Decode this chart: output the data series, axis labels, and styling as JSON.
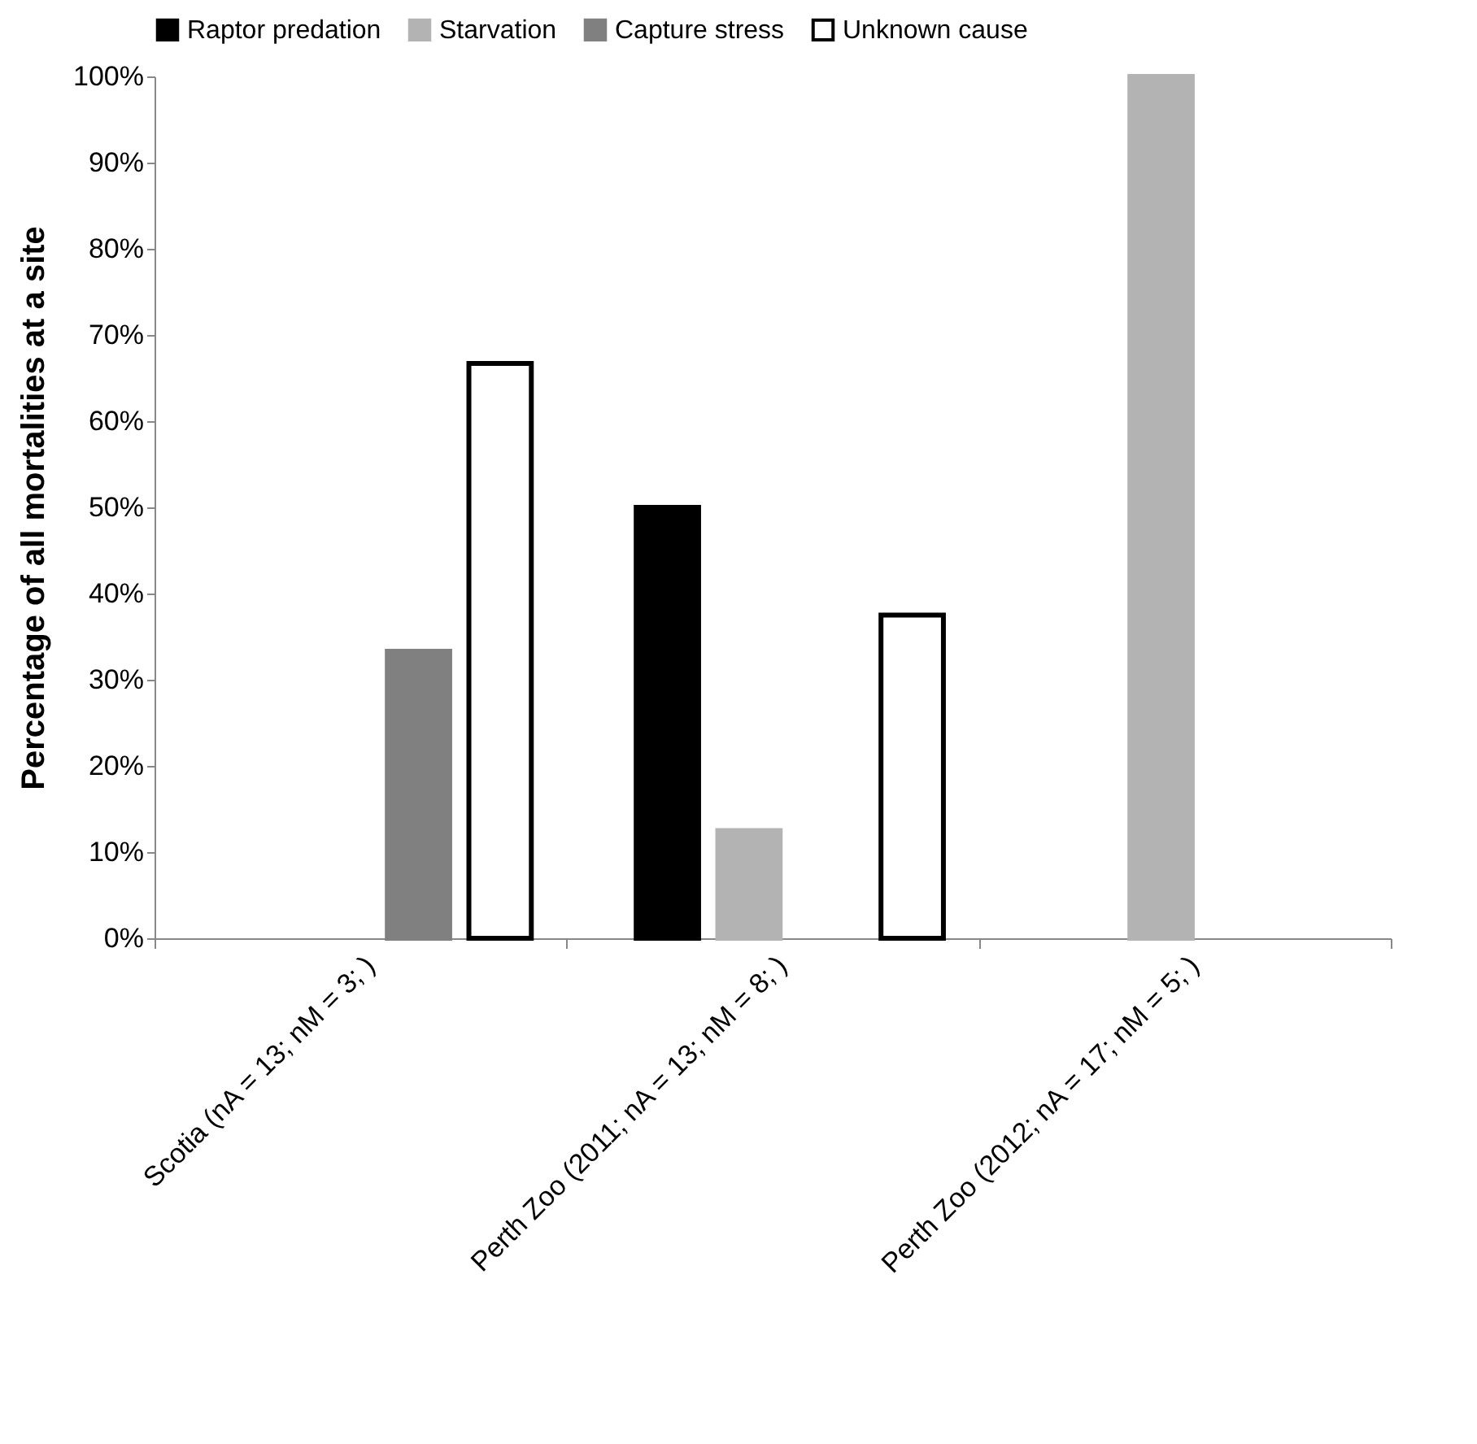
{
  "chart_data": {
    "type": "bar",
    "ylabel": "Percentage of all mortalities at a site",
    "categories": [
      "Scotia (nA = 13; nM = 3; )",
      "Perth Zoo (2011; nA = 13; nM = 8; )",
      "Perth Zoo (2012; nA = 17; nM = 5; )"
    ],
    "series": [
      {
        "name": "Raptor predation",
        "color": "#000000",
        "values": [
          null,
          50,
          null
        ]
      },
      {
        "name": "Starvation",
        "color": "#b3b3b3",
        "values": [
          null,
          12.5,
          100
        ]
      },
      {
        "name": "Capture stress",
        "color": "#808080",
        "values": [
          33.3,
          null,
          null
        ]
      },
      {
        "name": "Unknown cause",
        "color": "#ffffff",
        "values": [
          66.7,
          37.5,
          null
        ]
      }
    ],
    "ylim": [
      0,
      100
    ],
    "yticks": [
      {
        "value": 0,
        "label": "0%"
      },
      {
        "value": 10,
        "label": "10%"
      },
      {
        "value": 20,
        "label": "20%"
      },
      {
        "value": 30,
        "label": "30%"
      },
      {
        "value": 40,
        "label": "40%"
      },
      {
        "value": 50,
        "label": "50%"
      },
      {
        "value": 60,
        "label": "60%"
      },
      {
        "value": 70,
        "label": "70%"
      },
      {
        "value": 80,
        "label": "80%"
      },
      {
        "value": 90,
        "label": "90%"
      },
      {
        "value": 100,
        "label": "100%"
      }
    ],
    "grid": false,
    "legend": "top"
  }
}
